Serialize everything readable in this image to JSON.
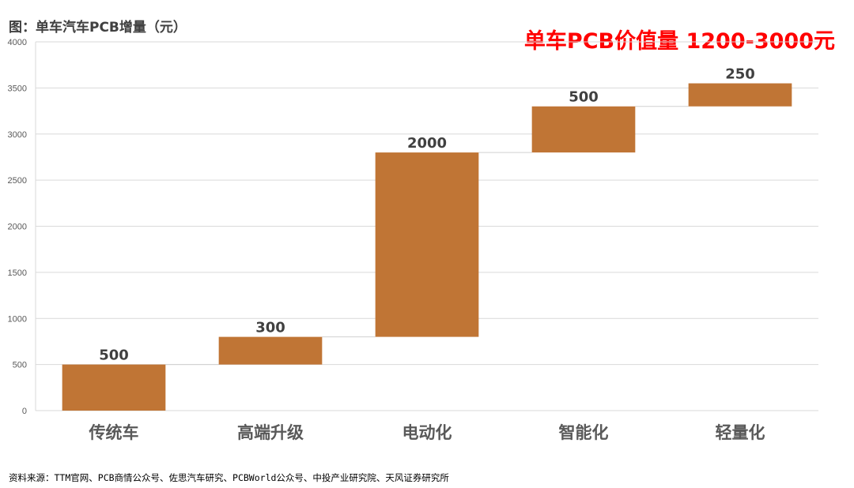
{
  "caption": "图：单车汽车PCB增量（元）",
  "highlight": "单车PCB价值量 1200-3000元",
  "source": "资料来源：TTM官网、PCB商情公众号、佐思汽车研究、PCBWorld公众号、中投产业研究院、天风证券研究所",
  "colors": {
    "bar": "#C07535",
    "grid": "#D9D9D9",
    "highlight": "#FF0000"
  },
  "chart_data": {
    "type": "bar",
    "subtype": "waterfall",
    "categories": [
      "传统车",
      "高端升级",
      "电动化",
      "智能化",
      "轻量化"
    ],
    "values": [
      500,
      300,
      2000,
      500,
      250
    ],
    "bases": [
      0,
      500,
      800,
      2800,
      3300
    ],
    "data_labels": [
      "500",
      "300",
      "2000",
      "500",
      "250"
    ],
    "yticks": [
      "0",
      "500",
      "1000",
      "1500",
      "2000",
      "2500",
      "3000",
      "3500",
      "4000"
    ],
    "ylim": [
      0,
      4000
    ],
    "grid": true,
    "legend": "none"
  }
}
